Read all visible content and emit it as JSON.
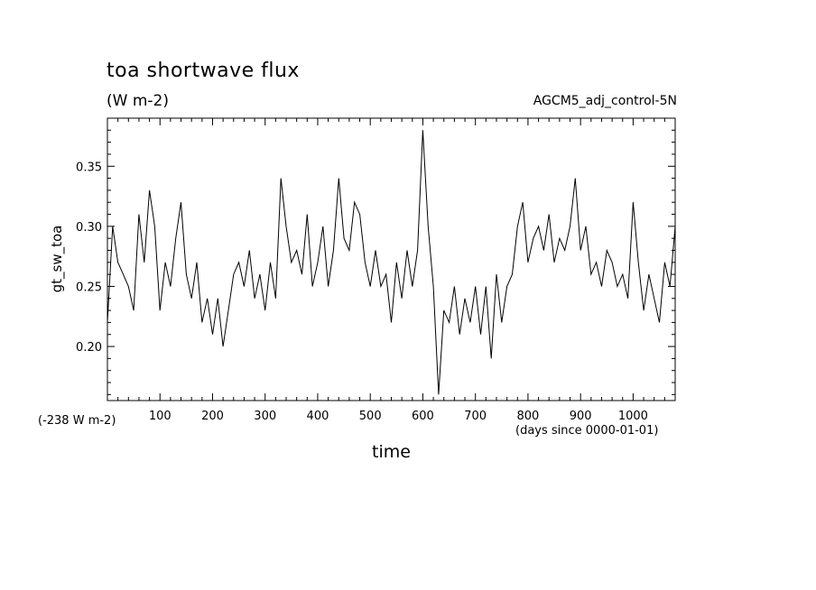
{
  "chart_data": {
    "type": "line",
    "title": "toa shortwave flux",
    "units_label": "(W m-2)",
    "run_label": "AGCM5_adj_control-5N",
    "xlabel": "time",
    "x_units_label": "(days since 0000-01-01)",
    "ylabel": "gt_sw_toa",
    "y_offset_label": "(-238 W m-2)",
    "xlim": [
      0,
      1080
    ],
    "ylim": [
      0.155,
      0.39
    ],
    "x_ticks": [
      100,
      200,
      300,
      400,
      500,
      600,
      700,
      800,
      900,
      1000
    ],
    "y_ticks": [
      0.2,
      0.25,
      0.3,
      0.35
    ],
    "y_tick_labels": [
      "0.20",
      "0.25",
      "0.30",
      "0.35"
    ],
    "grid": false,
    "legend": "none",
    "line_color": "#000000",
    "series": [
      {
        "x": [
          0,
          10,
          20,
          30,
          40,
          50,
          60,
          70,
          80,
          90,
          100,
          110,
          120,
          130,
          140,
          150,
          160,
          170,
          180,
          190,
          200,
          210,
          220,
          230,
          240,
          250,
          260,
          270,
          280,
          290,
          300,
          310,
          320,
          330,
          340,
          350,
          360,
          370,
          380,
          390,
          400,
          410,
          420,
          430,
          440,
          450,
          460,
          470,
          480,
          490,
          500,
          510,
          520,
          530,
          540,
          550,
          560,
          570,
          580,
          590,
          600,
          610,
          620,
          630,
          640,
          650,
          660,
          670,
          680,
          690,
          700,
          710,
          720,
          730,
          740,
          750,
          760,
          770,
          780,
          790,
          800,
          810,
          820,
          830,
          840,
          850,
          860,
          870,
          880,
          890,
          900,
          910,
          920,
          930,
          940,
          950,
          960,
          970,
          980,
          990,
          1000,
          1010,
          1020,
          1030,
          1040,
          1050,
          1060,
          1070,
          1080
        ],
        "values": [
          0.22,
          0.3,
          0.27,
          0.26,
          0.25,
          0.23,
          0.31,
          0.27,
          0.33,
          0.3,
          0.23,
          0.27,
          0.25,
          0.29,
          0.32,
          0.26,
          0.24,
          0.27,
          0.22,
          0.24,
          0.21,
          0.24,
          0.2,
          0.23,
          0.26,
          0.27,
          0.25,
          0.28,
          0.24,
          0.26,
          0.23,
          0.27,
          0.24,
          0.34,
          0.3,
          0.27,
          0.28,
          0.26,
          0.31,
          0.25,
          0.27,
          0.3,
          0.25,
          0.28,
          0.34,
          0.29,
          0.28,
          0.32,
          0.31,
          0.27,
          0.25,
          0.28,
          0.25,
          0.26,
          0.22,
          0.27,
          0.24,
          0.28,
          0.25,
          0.28,
          0.38,
          0.3,
          0.25,
          0.16,
          0.23,
          0.22,
          0.25,
          0.21,
          0.24,
          0.22,
          0.25,
          0.21,
          0.25,
          0.19,
          0.26,
          0.22,
          0.25,
          0.26,
          0.3,
          0.32,
          0.27,
          0.29,
          0.3,
          0.28,
          0.31,
          0.27,
          0.29,
          0.28,
          0.3,
          0.34,
          0.28,
          0.3,
          0.26,
          0.27,
          0.25,
          0.28,
          0.27,
          0.25,
          0.26,
          0.24,
          0.32,
          0.27,
          0.23,
          0.26,
          0.24,
          0.22,
          0.27,
          0.25,
          0.3
        ]
      }
    ]
  }
}
